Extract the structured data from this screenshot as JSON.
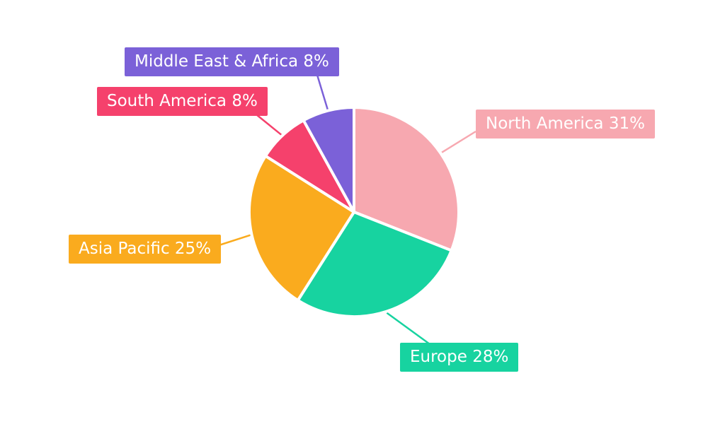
{
  "chart_data": {
    "type": "pie",
    "title": "",
    "legend_position": "none",
    "background": "#FFFFFF",
    "start_angle_deg": 0,
    "direction": "clockwise",
    "slices": [
      {
        "id": "north-america",
        "name": "North America",
        "value": 31,
        "unit": "%",
        "color": "#F7A8B0",
        "label": "North America 31%"
      },
      {
        "id": "europe",
        "name": "Europe",
        "value": 28,
        "unit": "%",
        "color": "#17D3A0",
        "label": "Europe 28%"
      },
      {
        "id": "asia-pacific",
        "name": "Asia Pacific",
        "value": 25,
        "unit": "%",
        "color": "#FAAB1E",
        "label": "Asia Pacific 25%"
      },
      {
        "id": "south-america",
        "name": "South America",
        "value": 8,
        "unit": "%",
        "color": "#F5416C",
        "label": "South America 8%"
      },
      {
        "id": "middle-east-africa",
        "name": "Middle East & Africa",
        "value": 8,
        "unit": "%",
        "color": "#7B61D8",
        "label": "Middle East & Africa 8%"
      }
    ]
  }
}
